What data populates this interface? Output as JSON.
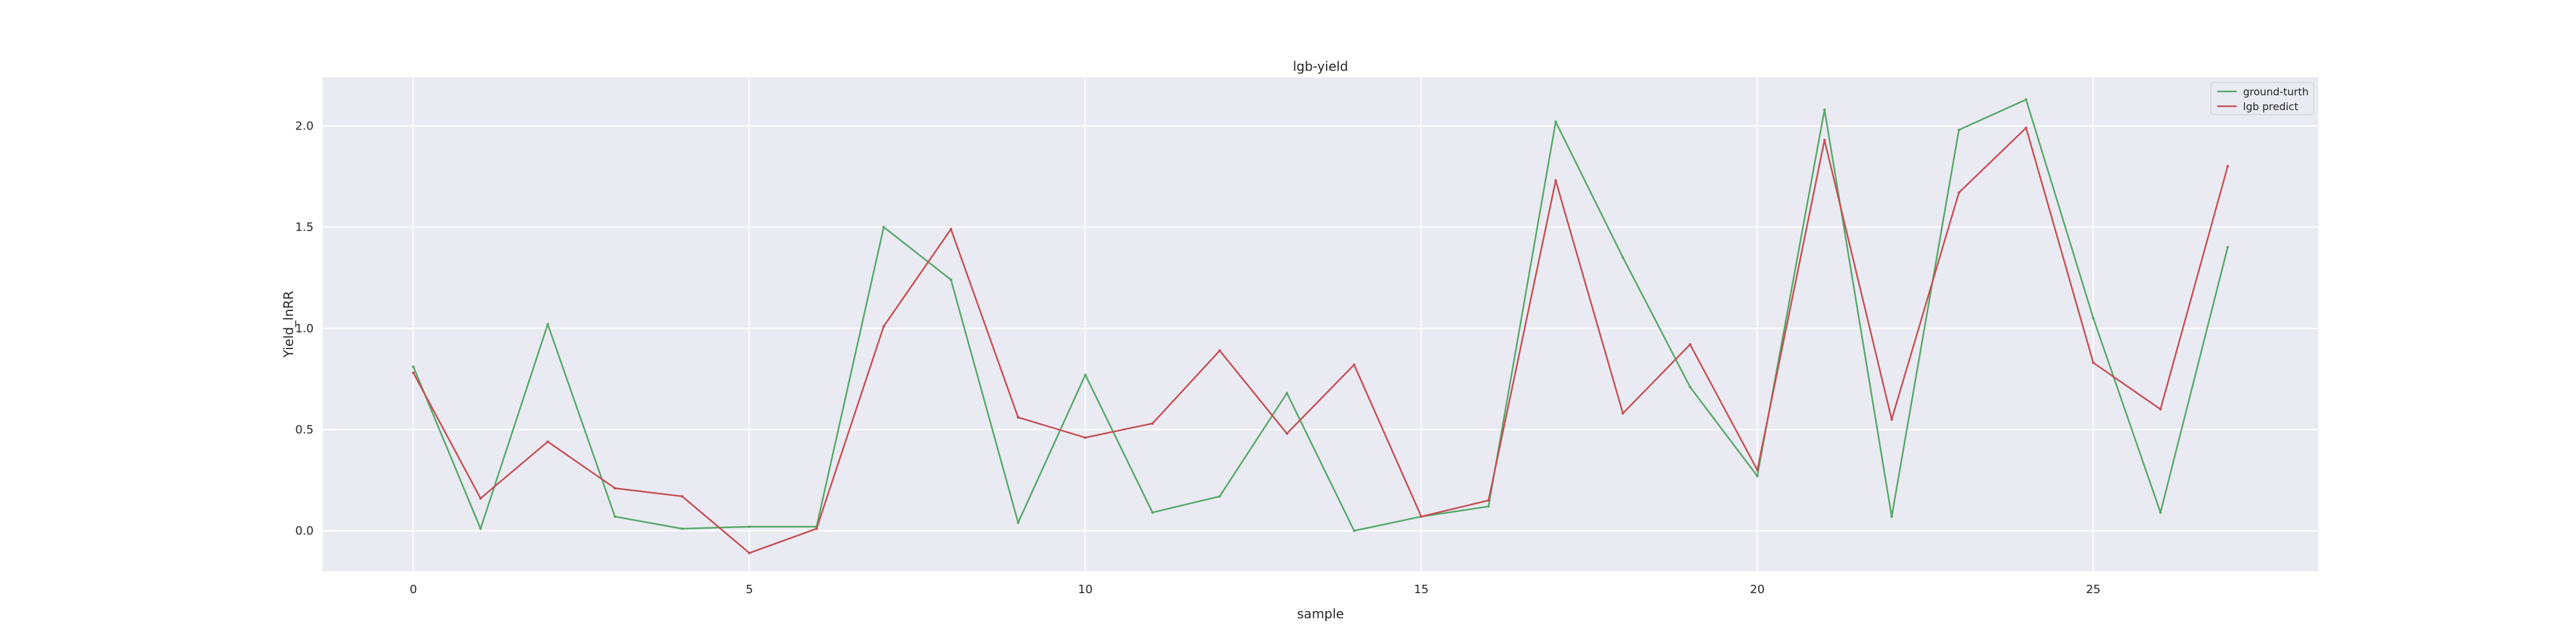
{
  "chart_data": {
    "type": "line",
    "title": "lgb-yield",
    "xlabel": "sample",
    "ylabel": "Yield_lnRR",
    "xlim": [
      -1.35,
      28.35
    ],
    "ylim": [
      -0.2,
      2.24
    ],
    "xticks": [
      0,
      5,
      10,
      15,
      20,
      25
    ],
    "yticks": [
      0.0,
      0.5,
      1.0,
      1.5,
      2.0
    ],
    "xtick_labels": [
      "0",
      "5",
      "10",
      "15",
      "20",
      "25"
    ],
    "ytick_labels": [
      "0.0",
      "0.5",
      "1.0",
      "1.5",
      "2.0"
    ],
    "grid": true,
    "legend_position": "top-right",
    "x": [
      0,
      1,
      2,
      3,
      4,
      5,
      6,
      7,
      8,
      9,
      10,
      11,
      12,
      13,
      14,
      15,
      16,
      17,
      18,
      19,
      20,
      21,
      22,
      23,
      24,
      25,
      26,
      27
    ],
    "series": [
      {
        "name": "ground-turth",
        "color": "#55a868",
        "values": [
          0.81,
          0.01,
          1.02,
          0.07,
          0.01,
          0.02,
          0.02,
          1.5,
          1.24,
          0.04,
          0.77,
          0.09,
          0.17,
          0.68,
          0.0,
          0.07,
          0.12,
          2.02,
          1.35,
          0.71,
          0.27,
          2.08,
          0.07,
          1.98,
          2.13,
          1.05,
          0.09,
          1.4
        ]
      },
      {
        "name": "lgb predict",
        "color": "#c44e52",
        "values": [
          0.78,
          0.16,
          0.44,
          0.21,
          0.17,
          -0.11,
          0.01,
          1.01,
          1.49,
          0.56,
          0.46,
          0.53,
          0.89,
          0.48,
          0.82,
          0.07,
          0.15,
          1.73,
          0.58,
          0.92,
          0.3,
          1.93,
          0.55,
          1.67,
          1.99,
          0.83,
          0.6,
          1.8
        ]
      }
    ],
    "plot_background": "#eaeaf2",
    "grid_color": "#ffffff"
  }
}
